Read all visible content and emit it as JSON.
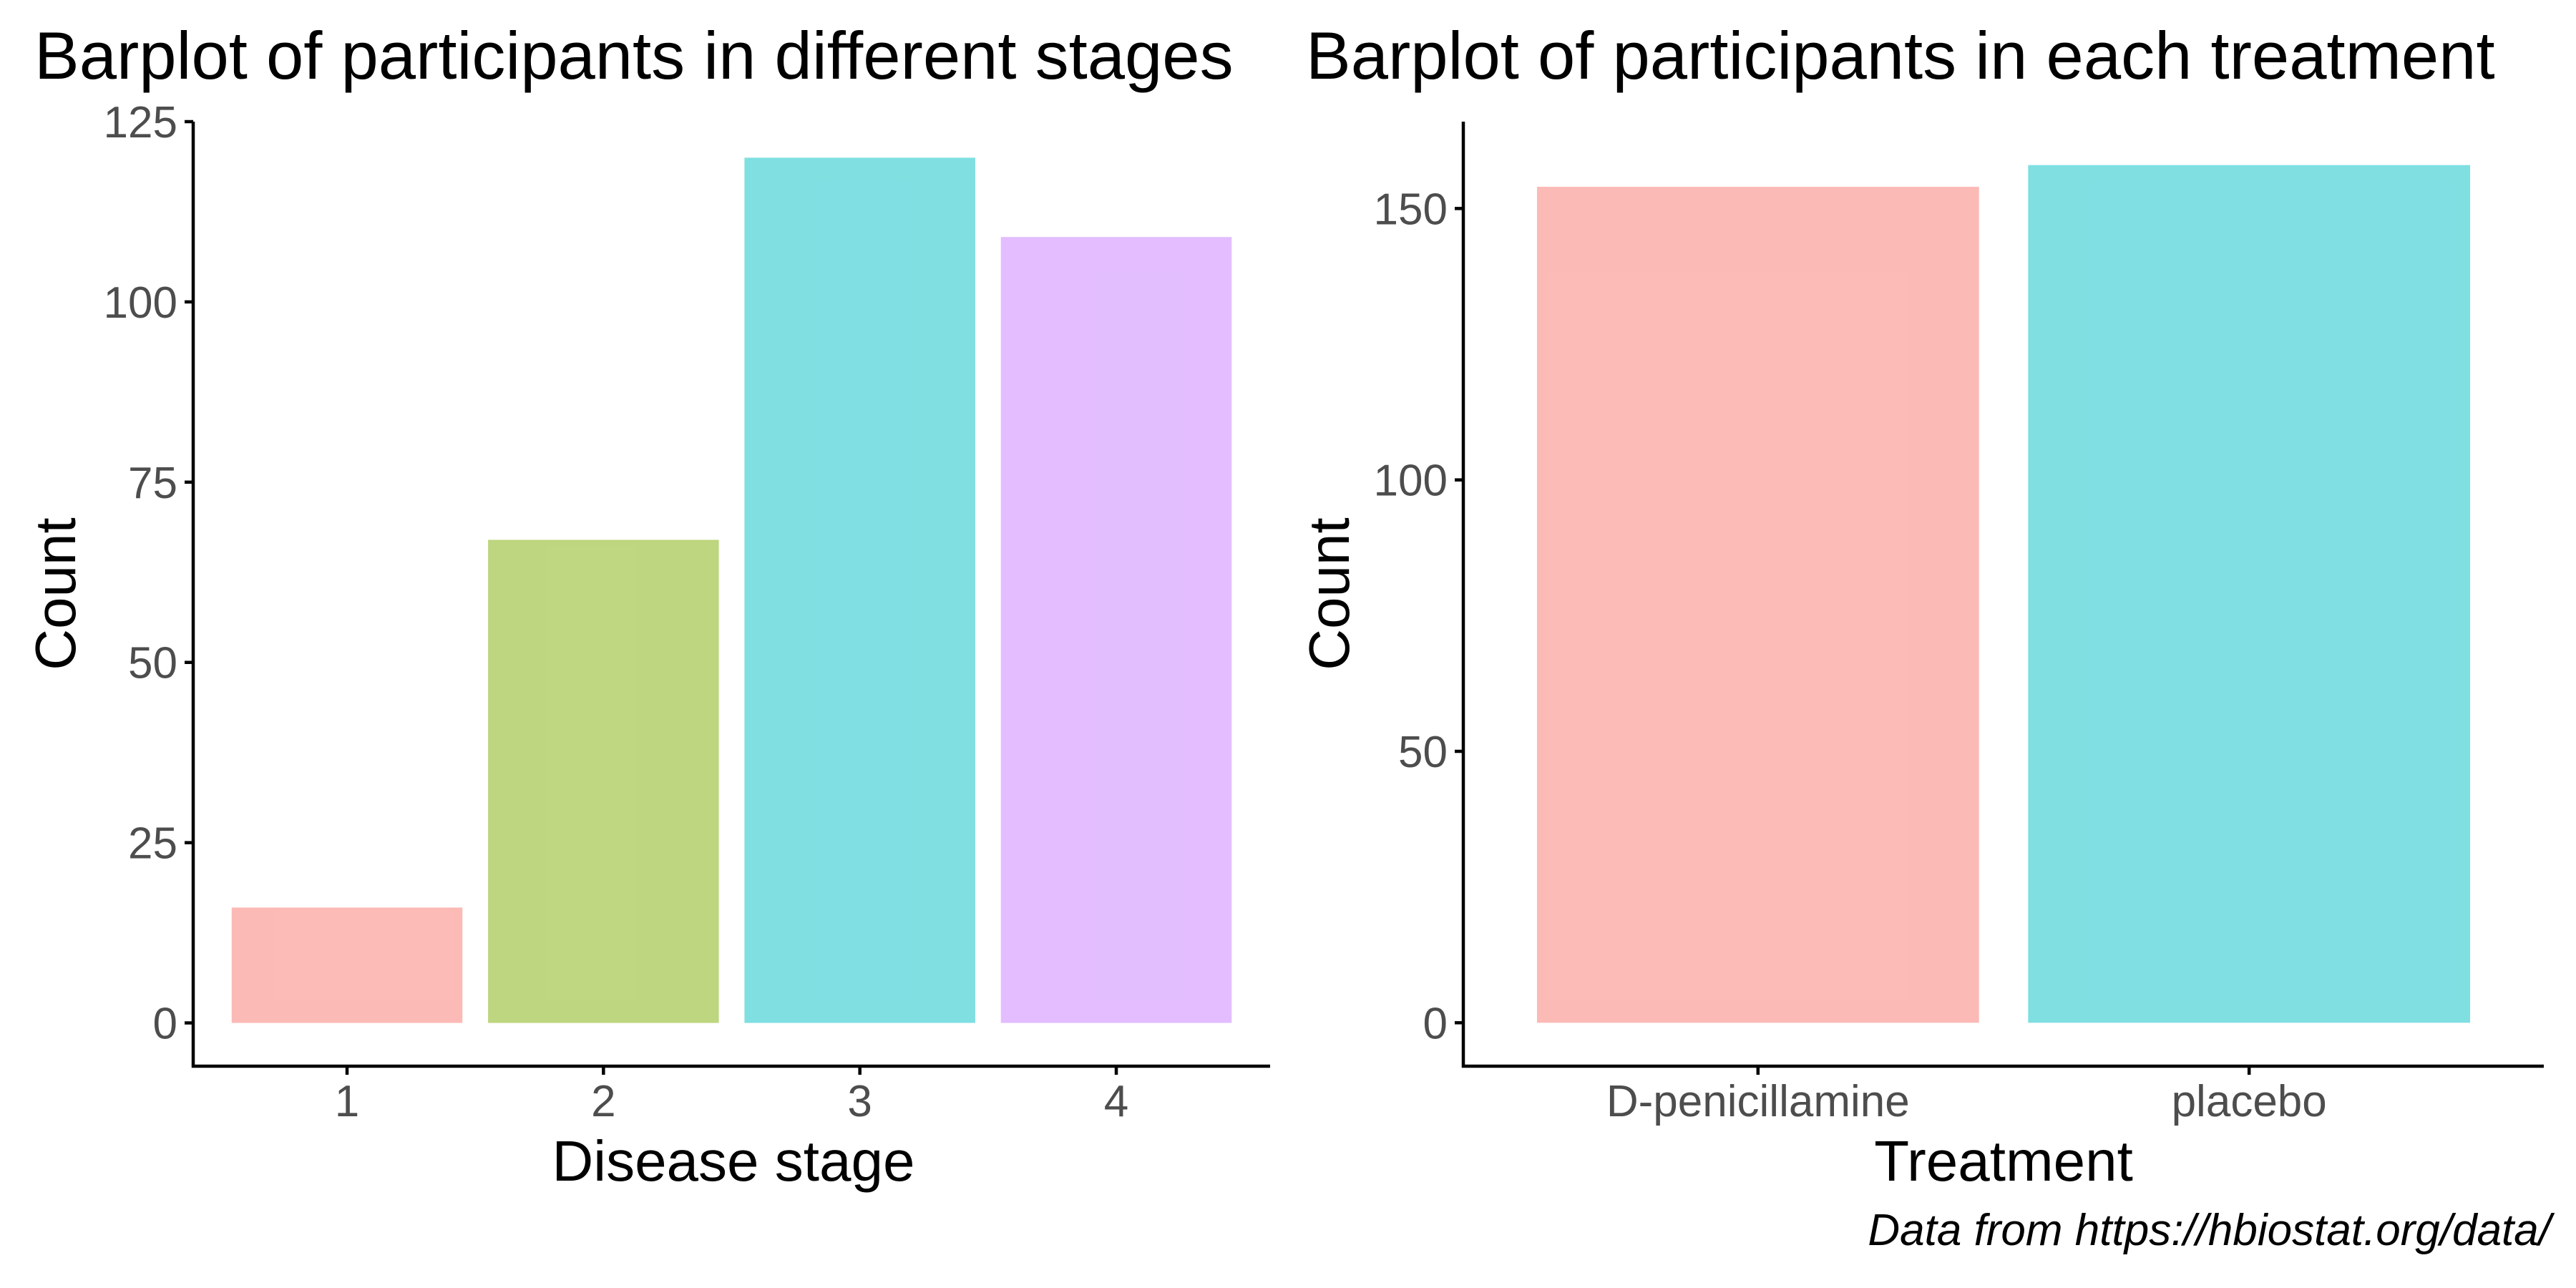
{
  "caption": "Data from https://hbiostat.org/data/",
  "chart_data": [
    {
      "type": "bar",
      "title": "Barplot of participants in different stages",
      "xlabel": "Disease stage",
      "ylabel": "Count",
      "categories": [
        "1",
        "2",
        "3",
        "4"
      ],
      "values": [
        16,
        67,
        120,
        109
      ],
      "colors": [
        "#F8766D",
        "#7CAE00",
        "#00BFC4",
        "#C77CFF"
      ],
      "bar_opacity": 0.5,
      "ylim": [
        -6,
        125
      ],
      "yticks": [
        0,
        25,
        50,
        75,
        100,
        125
      ],
      "grid": false
    },
    {
      "type": "bar",
      "title": "Barplot of participants in each treatment",
      "xlabel": "Treatment",
      "ylabel": "Count",
      "categories": [
        "D-penicillamine",
        "placebo"
      ],
      "values": [
        154,
        158
      ],
      "colors": [
        "#F8766D",
        "#00BFC4"
      ],
      "bar_opacity": 0.5,
      "ylim": [
        -8,
        166
      ],
      "yticks": [
        0,
        50,
        100,
        150
      ],
      "grid": false
    }
  ]
}
